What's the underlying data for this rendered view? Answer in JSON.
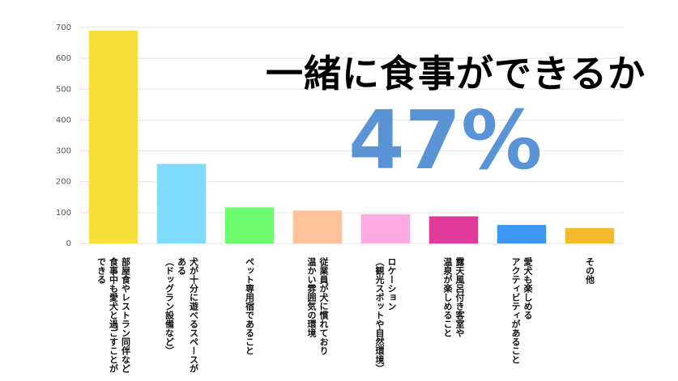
{
  "chart_data": {
    "type": "bar",
    "categories": [
      "部屋食やレストラン同伴など\n食事中も愛犬と過ごすことができる",
      "犬が十分に遊べるスペースがある\n（ドッグラン設備など）",
      "ペット専用宿であること",
      "従業員が犬に慣れており\n温かい雰囲気の環境",
      "ロケーション\n（観光スポットや自然環境）",
      "露天風呂付き客室や\n温泉が楽しめること",
      "愛犬も楽しめる\nアクティビティがあること",
      "その他"
    ],
    "values": [
      690,
      258,
      117,
      107,
      95,
      88,
      60,
      50
    ],
    "colors": [
      "#f9e03a",
      "#7fdcfc",
      "#6dfc6d",
      "#fdc49b",
      "#fcaae0",
      "#e03a9a",
      "#3a96f0",
      "#f5b82e"
    ],
    "ylim": [
      0,
      700
    ],
    "yticks": [
      0,
      100,
      200,
      300,
      400,
      500,
      600,
      700
    ],
    "grid": true,
    "annotations": [
      "一緒に食事ができるか",
      "47%"
    ]
  }
}
